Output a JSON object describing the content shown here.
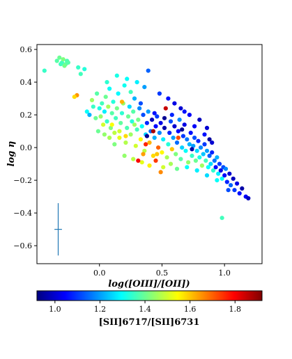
{
  "chart_data": {
    "type": "scatter",
    "xlabel": "log([OIII]/[OII])",
    "ylabel": "log η",
    "xlim": [
      -0.5,
      1.3
    ],
    "ylim": [
      -0.71,
      0.63
    ],
    "xticks": [
      0.0,
      0.5,
      1.0
    ],
    "xtick_labels": [
      "0.0",
      "0.5",
      "1.0"
    ],
    "yticks": [
      0.6,
      0.4,
      0.2,
      0.0,
      -0.2,
      -0.4,
      -0.6
    ],
    "ytick_labels": [
      "0.6",
      "0.4",
      "0.2",
      "0.0",
      "−0.2",
      "−0.4",
      "−0.6"
    ],
    "grid": false,
    "error_bar": {
      "x": -0.33,
      "y": -0.5,
      "xerr": 0.03,
      "yerr": 0.16
    },
    "colorbar": {
      "label": "[SII]6717/[SII]6731",
      "range": [
        0.92,
        1.92
      ],
      "ticks": [
        1.0,
        1.2,
        1.4,
        1.6,
        1.8
      ],
      "tick_labels": [
        "1.0",
        "1.2",
        "1.4",
        "1.6",
        "1.8"
      ],
      "colormap": "jet",
      "colors": [
        "#00007f",
        "#0000ff",
        "#007fff",
        "#00ffff",
        "#7fff7f",
        "#ffff00",
        "#ff7f00",
        "#ff0000",
        "#7f0000"
      ]
    },
    "points": [
      {
        "x": -0.44,
        "y": 0.47,
        "c": 1.35
      },
      {
        "x": -0.34,
        "y": 0.53,
        "c": 1.38
      },
      {
        "x": -0.32,
        "y": 0.55,
        "c": 1.4
      },
      {
        "x": -0.3,
        "y": 0.52,
        "c": 1.36
      },
      {
        "x": -0.29,
        "y": 0.54,
        "c": 1.42
      },
      {
        "x": -0.27,
        "y": 0.51,
        "c": 1.39
      },
      {
        "x": -0.26,
        "y": 0.53,
        "c": 1.37
      },
      {
        "x": -0.28,
        "y": 0.5,
        "c": 1.41
      },
      {
        "x": -0.25,
        "y": 0.52,
        "c": 1.38
      },
      {
        "x": -0.31,
        "y": 0.51,
        "c": 1.36
      },
      {
        "x": -0.18,
        "y": 0.32,
        "c": 1.65
      },
      {
        "x": -0.2,
        "y": 0.31,
        "c": 1.58
      },
      {
        "x": -0.17,
        "y": 0.49,
        "c": 1.35
      },
      {
        "x": -0.12,
        "y": 0.48,
        "c": 1.33
      },
      {
        "x": -0.15,
        "y": 0.45,
        "c": 1.36
      },
      {
        "x": -0.1,
        "y": 0.22,
        "c": 1.3
      },
      {
        "x": -0.08,
        "y": 0.2,
        "c": 1.22
      },
      {
        "x": -0.05,
        "y": 0.25,
        "c": 1.35
      },
      {
        "x": -0.03,
        "y": 0.18,
        "c": 1.4
      },
      {
        "x": -0.06,
        "y": 0.29,
        "c": 1.45
      },
      {
        "x": -0.02,
        "y": 0.33,
        "c": 1.38
      },
      {
        "x": 0.0,
        "y": 0.24,
        "c": 1.32
      },
      {
        "x": 0.01,
        "y": 0.19,
        "c": 1.44
      },
      {
        "x": 0.02,
        "y": 0.27,
        "c": 1.36
      },
      {
        "x": 0.03,
        "y": 0.14,
        "c": 1.5
      },
      {
        "x": 0.04,
        "y": 0.22,
        "c": 1.28
      },
      {
        "x": 0.05,
        "y": 0.31,
        "c": 1.4
      },
      {
        "x": 0.06,
        "y": 0.16,
        "c": 1.35
      },
      {
        "x": 0.07,
        "y": 0.25,
        "c": 1.46
      },
      {
        "x": 0.08,
        "y": 0.36,
        "c": 1.3
      },
      {
        "x": 0.09,
        "y": 0.12,
        "c": 1.42
      },
      {
        "x": 0.1,
        "y": 0.21,
        "c": 1.38
      },
      {
        "x": 0.11,
        "y": 0.28,
        "c": 1.33
      },
      {
        "x": 0.12,
        "y": 0.09,
        "c": 1.48
      },
      {
        "x": 0.13,
        "y": 0.18,
        "c": 1.36
      },
      {
        "x": 0.14,
        "y": 0.24,
        "c": 1.41
      },
      {
        "x": 0.15,
        "y": 0.33,
        "c": 1.29
      },
      {
        "x": 0.16,
        "y": 0.06,
        "c": 1.52
      },
      {
        "x": 0.17,
        "y": 0.15,
        "c": 1.39
      },
      {
        "x": 0.18,
        "y": 0.21,
        "c": 1.34
      },
      {
        "x": 0.19,
        "y": 0.27,
        "c": 1.44
      },
      {
        "x": 0.2,
        "y": 0.38,
        "c": 1.31
      },
      {
        "x": 0.21,
        "y": 0.03,
        "c": 1.47
      },
      {
        "x": 0.22,
        "y": 0.12,
        "c": 1.37
      },
      {
        "x": 0.23,
        "y": 0.19,
        "c": 1.4
      },
      {
        "x": 0.24,
        "y": 0.25,
        "c": 1.26
      },
      {
        "x": 0.25,
        "y": 0.08,
        "c": 1.45
      },
      {
        "x": 0.26,
        "y": 0.16,
        "c": 1.33
      },
      {
        "x": 0.27,
        "y": 0.22,
        "c": 1.38
      },
      {
        "x": 0.28,
        "y": 0.3,
        "c": 1.22
      },
      {
        "x": 0.29,
        "y": 0.01,
        "c": 1.5
      },
      {
        "x": 0.3,
        "y": 0.11,
        "c": 1.36
      },
      {
        "x": 0.31,
        "y": 0.17,
        "c": 1.41
      },
      {
        "x": 0.32,
        "y": 0.24,
        "c": 1.18
      },
      {
        "x": 0.33,
        "y": 0.05,
        "c": 1.55
      },
      {
        "x": 0.34,
        "y": 0.13,
        "c": 1.3
      },
      {
        "x": 0.35,
        "y": 0.2,
        "c": 1.12
      },
      {
        "x": 0.36,
        "y": -0.02,
        "c": 1.48
      },
      {
        "x": 0.37,
        "y": 0.08,
        "c": 1.25
      },
      {
        "x": 0.38,
        "y": 0.15,
        "c": 1.08
      },
      {
        "x": 0.39,
        "y": 0.22,
        "c": 1.2
      },
      {
        "x": 0.4,
        "y": 0.03,
        "c": 1.62
      },
      {
        "x": 0.41,
        "y": 0.1,
        "c": 1.15
      },
      {
        "x": 0.42,
        "y": 0.17,
        "c": 0.98
      },
      {
        "x": 0.43,
        "y": -0.05,
        "c": 1.58
      },
      {
        "x": 0.44,
        "y": 0.06,
        "c": 1.22
      },
      {
        "x": 0.45,
        "y": 0.13,
        "c": 1.05
      },
      {
        "x": 0.46,
        "y": 0.19,
        "c": 1.1
      },
      {
        "x": 0.47,
        "y": 0.0,
        "c": 1.7
      },
      {
        "x": 0.48,
        "y": 0.09,
        "c": 1.18
      },
      {
        "x": 0.49,
        "y": 0.15,
        "c": 1.02
      },
      {
        "x": 0.5,
        "y": -0.03,
        "c": 1.55
      },
      {
        "x": 0.51,
        "y": 0.05,
        "c": 1.28
      },
      {
        "x": 0.52,
        "y": 0.12,
        "c": 0.96
      },
      {
        "x": 0.53,
        "y": 0.24,
        "c": 1.85
      },
      {
        "x": 0.54,
        "y": -0.06,
        "c": 1.46
      },
      {
        "x": 0.55,
        "y": 0.02,
        "c": 1.33
      },
      {
        "x": 0.56,
        "y": 0.09,
        "c": 1.08
      },
      {
        "x": 0.57,
        "y": 0.16,
        "c": 1.12
      },
      {
        "x": 0.58,
        "y": -0.01,
        "c": 1.6
      },
      {
        "x": 0.59,
        "y": 0.06,
        "c": 1.2
      },
      {
        "x": 0.6,
        "y": 0.13,
        "c": 1.0
      },
      {
        "x": 0.61,
        "y": -0.04,
        "c": 1.42
      },
      {
        "x": 0.62,
        "y": 0.03,
        "c": 1.15
      },
      {
        "x": 0.63,
        "y": 0.1,
        "c": 1.05
      },
      {
        "x": 0.64,
        "y": 0.17,
        "c": 1.18
      },
      {
        "x": 0.65,
        "y": -0.07,
        "c": 1.38
      },
      {
        "x": 0.66,
        "y": 0.0,
        "c": 1.25
      },
      {
        "x": 0.67,
        "y": 0.07,
        "c": 1.1
      },
      {
        "x": 0.68,
        "y": 0.14,
        "c": 1.02
      },
      {
        "x": 0.69,
        "y": -0.02,
        "c": 1.3
      },
      {
        "x": 0.7,
        "y": 0.05,
        "c": 1.16
      },
      {
        "x": 0.71,
        "y": -0.09,
        "c": 1.44
      },
      {
        "x": 0.72,
        "y": 0.02,
        "c": 1.22
      },
      {
        "x": 0.73,
        "y": 0.09,
        "c": 1.06
      },
      {
        "x": 0.74,
        "y": -0.05,
        "c": 1.35
      },
      {
        "x": 0.75,
        "y": 0.01,
        "c": 1.2
      },
      {
        "x": 0.76,
        "y": 0.06,
        "c": 1.12
      },
      {
        "x": 0.77,
        "y": -0.08,
        "c": 1.4
      },
      {
        "x": 0.78,
        "y": -0.02,
        "c": 1.26
      },
      {
        "x": 0.79,
        "y": 0.04,
        "c": 1.08
      },
      {
        "x": 0.8,
        "y": -0.06,
        "c": 1.32
      },
      {
        "x": 0.81,
        "y": 0.0,
        "c": 1.18
      },
      {
        "x": 0.82,
        "y": -0.11,
        "c": 1.45
      },
      {
        "x": 0.83,
        "y": -0.04,
        "c": 1.24
      },
      {
        "x": 0.84,
        "y": 0.02,
        "c": 1.1
      },
      {
        "x": 0.85,
        "y": -0.08,
        "c": 1.36
      },
      {
        "x": 0.86,
        "y": -0.02,
        "c": 1.2
      },
      {
        "x": 0.87,
        "y": -0.12,
        "c": 1.3
      },
      {
        "x": 0.88,
        "y": -0.05,
        "c": 1.14
      },
      {
        "x": 0.89,
        "y": -0.1,
        "c": 1.26
      },
      {
        "x": 0.9,
        "y": -0.03,
        "c": 1.08
      },
      {
        "x": 0.91,
        "y": -0.14,
        "c": 1.34
      },
      {
        "x": 0.92,
        "y": -0.08,
        "c": 1.16
      },
      {
        "x": 0.93,
        "y": -0.12,
        "c": 1.05
      },
      {
        "x": 0.94,
        "y": -0.06,
        "c": 1.22
      },
      {
        "x": 0.95,
        "y": -0.16,
        "c": 1.28
      },
      {
        "x": 0.96,
        "y": -0.1,
        "c": 1.1
      },
      {
        "x": 0.97,
        "y": -0.14,
        "c": 1.02
      },
      {
        "x": 0.98,
        "y": -0.19,
        "c": 1.3
      },
      {
        "x": 0.99,
        "y": -0.12,
        "c": 1.12
      },
      {
        "x": 1.0,
        "y": -0.17,
        "c": 1.04
      },
      {
        "x": 1.01,
        "y": -0.13,
        "c": 1.18
      },
      {
        "x": 1.02,
        "y": -0.21,
        "c": 1.08
      },
      {
        "x": 1.04,
        "y": -0.16,
        "c": 1.0
      },
      {
        "x": 1.05,
        "y": -0.23,
        "c": 1.14
      },
      {
        "x": 1.07,
        "y": -0.19,
        "c": 0.98
      },
      {
        "x": 1.08,
        "y": -0.26,
        "c": 1.1
      },
      {
        "x": 1.1,
        "y": -0.22,
        "c": 1.02
      },
      {
        "x": 1.12,
        "y": -0.28,
        "c": 1.06
      },
      {
        "x": 1.14,
        "y": -0.25,
        "c": 0.96
      },
      {
        "x": 1.17,
        "y": -0.3,
        "c": 1.04
      },
      {
        "x": 1.19,
        "y": -0.31,
        "c": 0.98
      },
      {
        "x": 0.98,
        "y": -0.43,
        "c": 1.36
      },
      {
        "x": 0.06,
        "y": 0.4,
        "c": 1.34
      },
      {
        "x": 0.14,
        "y": 0.44,
        "c": 1.32
      },
      {
        "x": 0.22,
        "y": 0.42,
        "c": 1.3
      },
      {
        "x": 0.3,
        "y": 0.4,
        "c": 1.28
      },
      {
        "x": 0.36,
        "y": 0.37,
        "c": 1.2
      },
      {
        "x": 0.39,
        "y": 0.47,
        "c": 1.14
      },
      {
        "x": 0.48,
        "y": 0.33,
        "c": 1.1
      },
      {
        "x": 0.55,
        "y": 0.3,
        "c": 1.06
      },
      {
        "x": 0.6,
        "y": 0.27,
        "c": 1.02
      },
      {
        "x": 0.65,
        "y": 0.24,
        "c": 1.0
      },
      {
        "x": 0.72,
        "y": 0.2,
        "c": 1.04
      },
      {
        "x": 0.8,
        "y": 0.17,
        "c": 0.98
      },
      {
        "x": 0.86,
        "y": 0.12,
        "c": 1.0
      },
      {
        "x": 0.2,
        "y": -0.05,
        "c": 1.44
      },
      {
        "x": 0.27,
        "y": -0.07,
        "c": 1.48
      },
      {
        "x": 0.34,
        "y": -0.09,
        "c": 1.52
      },
      {
        "x": 0.4,
        "y": -0.11,
        "c": 1.56
      },
      {
        "x": 0.45,
        "y": -0.08,
        "c": 1.74
      },
      {
        "x": 0.51,
        "y": -0.12,
        "c": 1.5
      },
      {
        "x": 0.57,
        "y": -0.1,
        "c": 1.46
      },
      {
        "x": 0.62,
        "y": -0.13,
        "c": 1.4
      },
      {
        "x": 0.31,
        "y": -0.08,
        "c": 1.8
      },
      {
        "x": 0.49,
        "y": -0.15,
        "c": 1.66
      },
      {
        "x": 0.43,
        "y": 0.1,
        "c": 1.88
      },
      {
        "x": 0.37,
        "y": 0.02,
        "c": 1.76
      },
      {
        "x": 0.63,
        "y": 0.06,
        "c": 1.72
      },
      {
        "x": 0.18,
        "y": 0.28,
        "c": 1.62
      },
      {
        "x": 0.08,
        "y": 0.06,
        "c": 1.46
      },
      {
        "x": 0.12,
        "y": 0.02,
        "c": 1.42
      },
      {
        "x": -0.01,
        "y": 0.1,
        "c": 1.4
      },
      {
        "x": 0.04,
        "y": 0.08,
        "c": 1.44
      },
      {
        "x": 0.25,
        "y": 0.34,
        "c": 1.36
      },
      {
        "x": 0.16,
        "y": 0.1,
        "c": 1.5
      },
      {
        "x": 0.28,
        "y": 0.14,
        "c": 1.45
      },
      {
        "x": 0.33,
        "y": 0.27,
        "c": 1.12
      },
      {
        "x": 0.44,
        "y": 0.21,
        "c": 1.06
      },
      {
        "x": 0.58,
        "y": 0.2,
        "c": 1.08
      },
      {
        "x": 0.68,
        "y": 0.22,
        "c": 1.06
      },
      {
        "x": 0.76,
        "y": 0.13,
        "c": 1.04
      },
      {
        "x": 0.84,
        "y": 0.08,
        "c": 1.06
      },
      {
        "x": 0.9,
        "y": 0.03,
        "c": 1.0
      },
      {
        "x": 0.7,
        "y": -0.12,
        "c": 1.3
      },
      {
        "x": 0.78,
        "y": -0.14,
        "c": 1.28
      },
      {
        "x": 0.86,
        "y": -0.17,
        "c": 1.26
      },
      {
        "x": 0.94,
        "y": -0.2,
        "c": 1.3
      },
      {
        "x": 1.03,
        "y": -0.26,
        "c": 1.12
      },
      {
        "x": 0.1,
        "y": 0.14,
        "c": 1.54
      },
      {
        "x": 0.21,
        "y": 0.07,
        "c": 1.58
      },
      {
        "x": 0.35,
        "y": -0.04,
        "c": 1.64
      },
      {
        "x": 0.46,
        "y": -0.04,
        "c": 1.6
      },
      {
        "x": 0.38,
        "y": 0.07,
        "c": 0.94
      },
      {
        "x": 0.52,
        "y": 0.18,
        "c": 0.94
      },
      {
        "x": 0.66,
        "y": 0.11,
        "c": 0.94
      },
      {
        "x": 0.74,
        "y": -0.01,
        "c": 0.96
      },
      {
        "x": 0.88,
        "y": 0.05,
        "c": 0.95
      }
    ]
  }
}
